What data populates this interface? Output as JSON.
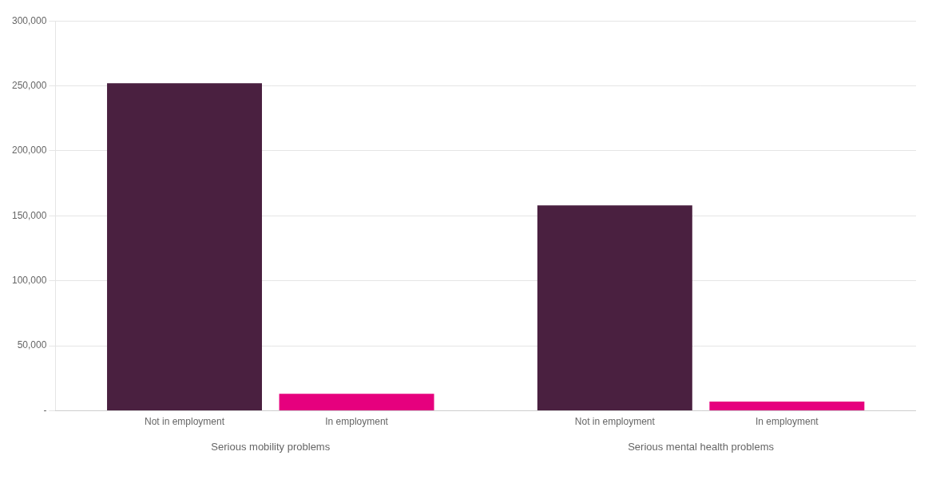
{
  "chart_data": {
    "type": "bar",
    "categories": [
      "Serious mobility problems",
      "Serious mental health problems"
    ],
    "series": [
      {
        "name": "Not in employment",
        "color": "#4a2040",
        "values": [
          252000,
          158000
        ]
      },
      {
        "name": "In employment",
        "color": "#e6007e",
        "values": [
          13000,
          7000
        ]
      }
    ],
    "ylim": [
      0,
      300000
    ],
    "yticks": [
      {
        "value": 0,
        "label": "-"
      },
      {
        "value": 50000,
        "label": "50,000"
      },
      {
        "value": 100000,
        "label": "100,000"
      },
      {
        "value": 150000,
        "label": "150,000"
      },
      {
        "value": 200000,
        "label": "200,000"
      },
      {
        "value": 250000,
        "label": "250,000"
      },
      {
        "value": 300000,
        "label": "300,000"
      }
    ],
    "grid": true
  }
}
